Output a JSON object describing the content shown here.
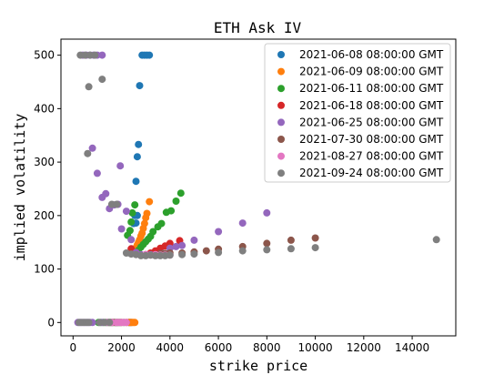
{
  "chart_data": {
    "type": "scatter",
    "title": "ETH Ask IV",
    "xlabel": "strike price",
    "ylabel": "implied volatility",
    "xlim": [
      -500,
      15800
    ],
    "ylim": [
      -25,
      530
    ],
    "xticks": [
      0,
      2000,
      4000,
      6000,
      8000,
      10000,
      12000,
      14000
    ],
    "yticks": [
      0,
      100,
      200,
      300,
      400,
      500
    ],
    "grid": false,
    "legend_position": "top-right",
    "series": [
      {
        "name": "2021-06-08 08:00:00 GMT",
        "color": "#1f77b4",
        "points": [
          [
            2850,
            500
          ],
          [
            2950,
            500
          ],
          [
            3050,
            500
          ],
          [
            3150,
            500
          ],
          [
            2750,
            443
          ],
          [
            2700,
            333
          ],
          [
            2650,
            310
          ],
          [
            2600,
            264
          ],
          [
            2550,
            200
          ],
          [
            2650,
            200
          ],
          [
            2500,
            185
          ],
          [
            2600,
            186
          ],
          [
            2400,
            0
          ],
          [
            2350,
            0
          ],
          [
            2300,
            0
          ]
        ]
      },
      {
        "name": "2021-06-09 08:00:00 GMT",
        "color": "#ff7f0e",
        "points": [
          [
            3150,
            226
          ],
          [
            3050,
            204
          ],
          [
            3000,
            196
          ],
          [
            2950,
            185
          ],
          [
            2900,
            176
          ],
          [
            2850,
            167
          ],
          [
            2800,
            162
          ],
          [
            2750,
            155
          ],
          [
            2700,
            150
          ],
          [
            2650,
            145
          ],
          [
            2600,
            140
          ],
          [
            2550,
            0
          ],
          [
            2500,
            0
          ],
          [
            2450,
            0
          ],
          [
            2400,
            0
          ],
          [
            2350,
            0
          ],
          [
            2300,
            0
          ]
        ]
      },
      {
        "name": "2021-06-11 08:00:00 GMT",
        "color": "#2ca02c",
        "points": [
          [
            4450,
            242
          ],
          [
            4250,
            227
          ],
          [
            4050,
            209
          ],
          [
            3850,
            206
          ],
          [
            3650,
            185
          ],
          [
            3500,
            179
          ],
          [
            3300,
            170
          ],
          [
            3200,
            161
          ],
          [
            3100,
            156
          ],
          [
            3000,
            151
          ],
          [
            2900,
            146
          ],
          [
            2800,
            141
          ],
          [
            2700,
            135
          ],
          [
            2600,
            131
          ],
          [
            2550,
            220
          ],
          [
            2450,
            205
          ],
          [
            2400,
            188
          ],
          [
            2350,
            172
          ],
          [
            2250,
            163
          ],
          [
            2100,
            0
          ],
          [
            1950,
            0
          ],
          [
            1850,
            0
          ],
          [
            1750,
            0
          ],
          [
            1650,
            0
          ],
          [
            1550,
            0
          ],
          [
            1450,
            0
          ],
          [
            1350,
            0
          ],
          [
            1250,
            0
          ],
          [
            1150,
            0
          ],
          [
            1050,
            0
          ]
        ]
      },
      {
        "name": "2021-06-18 08:00:00 GMT",
        "color": "#d62728",
        "points": [
          [
            4400,
            153
          ],
          [
            4000,
            148
          ],
          [
            3800,
            143
          ],
          [
            3600,
            139
          ],
          [
            3400,
            134
          ],
          [
            3200,
            130
          ],
          [
            3000,
            127
          ],
          [
            2800,
            126
          ],
          [
            2600,
            131
          ],
          [
            2400,
            138
          ],
          [
            2200,
            0
          ],
          [
            2000,
            0
          ],
          [
            1800,
            0
          ],
          [
            1600,
            0
          ]
        ]
      },
      {
        "name": "2021-06-25 08:00:00 GMT",
        "color": "#9467bd",
        "points": [
          [
            800,
            326
          ],
          [
            1000,
            279
          ],
          [
            1200,
            234
          ],
          [
            1350,
            241
          ],
          [
            1500,
            213
          ],
          [
            1700,
            220
          ],
          [
            1850,
            221
          ],
          [
            1950,
            293
          ],
          [
            2000,
            175
          ],
          [
            2200,
            208
          ],
          [
            2400,
            155
          ],
          [
            2600,
            131
          ],
          [
            2800,
            127
          ],
          [
            3000,
            127
          ],
          [
            3200,
            127
          ],
          [
            3500,
            126
          ],
          [
            3750,
            129
          ],
          [
            4000,
            139
          ],
          [
            4250,
            142
          ],
          [
            4500,
            144
          ],
          [
            5000,
            154
          ],
          [
            6000,
            170
          ],
          [
            7000,
            186
          ],
          [
            8000,
            205
          ],
          [
            400,
            500
          ],
          [
            550,
            500
          ],
          [
            700,
            500
          ],
          [
            850,
            500
          ],
          [
            1000,
            500
          ],
          [
            1200,
            500
          ],
          [
            200,
            0
          ],
          [
            300,
            0
          ],
          [
            400,
            0
          ],
          [
            500,
            0
          ],
          [
            600,
            0
          ],
          [
            700,
            0
          ],
          [
            800,
            0
          ],
          [
            1200,
            0
          ],
          [
            1400,
            0
          ],
          [
            1600,
            0
          ],
          [
            1800,
            0
          ]
        ]
      },
      {
        "name": "2021-07-30 08:00:00 GMT",
        "color": "#8c564b",
        "points": [
          [
            3600,
            129
          ],
          [
            3800,
            129
          ],
          [
            4000,
            130
          ],
          [
            4500,
            130
          ],
          [
            5000,
            132
          ],
          [
            5500,
            134
          ],
          [
            6000,
            137
          ],
          [
            7000,
            142
          ],
          [
            8000,
            148
          ],
          [
            9000,
            154
          ],
          [
            10000,
            158
          ],
          [
            1500,
            0
          ],
          [
            1700,
            0
          ],
          [
            1900,
            0
          ]
        ]
      },
      {
        "name": "2021-08-27 08:00:00 GMT",
        "color": "#e377c2",
        "points": [
          [
            3000,
            127
          ],
          [
            3200,
            126
          ],
          [
            3400,
            127
          ],
          [
            3600,
            126
          ],
          [
            3800,
            126
          ],
          [
            4000,
            126
          ],
          [
            1400,
            0
          ],
          [
            1600,
            0
          ],
          [
            1800,
            0
          ],
          [
            1900,
            0
          ],
          [
            2000,
            0
          ],
          [
            2100,
            0
          ],
          [
            2200,
            0
          ]
        ]
      },
      {
        "name": "2021-09-24 08:00:00 GMT",
        "color": "#7f7f7f",
        "points": [
          [
            300,
            500
          ],
          [
            500,
            500
          ],
          [
            700,
            500
          ],
          [
            900,
            500
          ],
          [
            1200,
            455
          ],
          [
            650,
            441
          ],
          [
            600,
            316
          ],
          [
            1600,
            221
          ],
          [
            1800,
            221
          ],
          [
            2200,
            130
          ],
          [
            2400,
            128
          ],
          [
            2600,
            127
          ],
          [
            2800,
            125
          ],
          [
            3000,
            125
          ],
          [
            3200,
            126
          ],
          [
            3400,
            125
          ],
          [
            3600,
            125
          ],
          [
            3800,
            125
          ],
          [
            4000,
            126
          ],
          [
            4500,
            127
          ],
          [
            5000,
            128
          ],
          [
            6000,
            131
          ],
          [
            7000,
            134
          ],
          [
            8000,
            136
          ],
          [
            9000,
            138
          ],
          [
            10000,
            140
          ],
          [
            15000,
            155
          ],
          [
            250,
            0
          ],
          [
            350,
            0
          ],
          [
            450,
            0
          ],
          [
            550,
            0
          ],
          [
            650,
            0
          ],
          [
            1100,
            0
          ],
          [
            1300,
            0
          ],
          [
            1500,
            0
          ]
        ]
      }
    ]
  }
}
